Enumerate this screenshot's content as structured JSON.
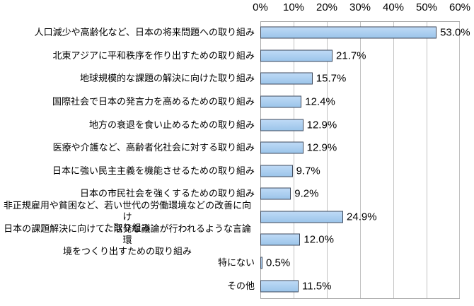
{
  "chart_data": {
    "type": "bar",
    "orientation": "horizontal",
    "title": "",
    "categories": [
      "人口減少や高齢化など、日本の将来問題への取り組み",
      "北東アジアに平和秩序を作り出すための取り組み",
      "地球規模的な課題の解決に向けた取り組み",
      "国際社会で日本の発言力を高めるための取り組み",
      "地方の衰退を食い止めるための取り組み",
      "医療や介護など、高齢者化社会に対する取り組み",
      "日本に強い民主主義を機能させるための取り組み",
      "日本の市民社会を強くするための取り組み",
      "非正規雇用や貧困など、若い世代の労働環境などの改善に向け\nた取り組み",
      "日本の課題解決に向けて、活発な議論が行われるような言論環\n境をつくり出すための取り組み",
      "特にない",
      "その他"
    ],
    "values": [
      53.0,
      21.7,
      15.7,
      12.4,
      12.9,
      12.9,
      9.7,
      9.2,
      24.9,
      12.0,
      0.5,
      11.5
    ],
    "value_labels": [
      "53.0%",
      "21.7%",
      "15.7%",
      "12.4%",
      "12.9%",
      "12.9%",
      "9.7%",
      "9.2%",
      "24.9%",
      "12.0%",
      "0.5%",
      "11.5%"
    ],
    "xlabel": "",
    "ylabel": "",
    "axis": {
      "min": 0,
      "max": 60,
      "tick_step": 10,
      "ticks": [
        "0%",
        "10%",
        "20%",
        "30%",
        "40%",
        "50%",
        "60%"
      ],
      "position": "top"
    },
    "grid": true,
    "legend": "none",
    "colors": {
      "bar_fill": "#a7cdf0",
      "bar_border": "#3f4a5c",
      "gridline": "#c2c2c2",
      "axis_line": "#a9a9a9",
      "text": "#000000",
      "background": "#ffffff"
    }
  }
}
